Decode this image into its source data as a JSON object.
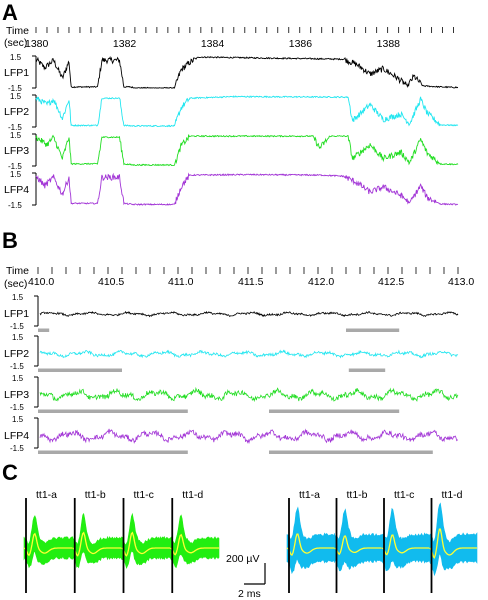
{
  "colors": {
    "LFP1": "#000000",
    "LFP2": "#22e6f0",
    "LFP3": "#22dd22",
    "LFP4": "#a235d6",
    "bar": "#a9a9a9",
    "waveA": "#22ee11",
    "waveB": "#11bbee",
    "mean": "#ffff33"
  },
  "chart_data": [
    {
      "panel": "A",
      "type": "line",
      "xlabel": "Time",
      "xunit": "(sec)",
      "xlim": [
        1380,
        1389.6
      ],
      "xticks": [
        1380,
        1382,
        1384,
        1386,
        1388
      ],
      "minor_tick_step": 0.25,
      "ylim": [
        -1.5,
        1.5
      ],
      "ytick_labels": [
        "1.5",
        "-1.5"
      ],
      "series": [
        {
          "name": "LFP1",
          "color": "#000000",
          "points": [
            [
              1380,
              1.2
            ],
            [
              1380.2,
              0.4
            ],
            [
              1380.4,
              1.1
            ],
            [
              1380.6,
              -0.6
            ],
            [
              1380.75,
              1.0
            ],
            [
              1380.8,
              -1.4
            ],
            [
              1381.4,
              -1.4
            ],
            [
              1381.5,
              1.1
            ],
            [
              1381.9,
              1.1
            ],
            [
              1382.0,
              -1.4
            ],
            [
              1382.15,
              -1.4
            ],
            [
              1382.25,
              -1.5
            ],
            [
              1383.15,
              -1.5
            ],
            [
              1383.3,
              0.2
            ],
            [
              1383.5,
              0.9
            ],
            [
              1383.7,
              1.4
            ],
            [
              1387.0,
              1.2
            ],
            [
              1387.3,
              0.7
            ],
            [
              1387.6,
              -0.2
            ],
            [
              1387.9,
              0.3
            ],
            [
              1388.2,
              -0.5
            ],
            [
              1388.45,
              -1.3
            ],
            [
              1388.6,
              -0.4
            ],
            [
              1388.8,
              -1.3
            ],
            [
              1389.2,
              -1.4
            ],
            [
              1389.6,
              -1.45
            ]
          ]
        },
        {
          "name": "LFP2",
          "color": "#22e6f0",
          "points": [
            [
              1380,
              1.2
            ],
            [
              1380.25,
              0.6
            ],
            [
              1380.4,
              1.1
            ],
            [
              1380.6,
              -0.7
            ],
            [
              1380.75,
              1.1
            ],
            [
              1380.8,
              -1.35
            ],
            [
              1381.4,
              -1.35
            ],
            [
              1381.5,
              1.2
            ],
            [
              1381.9,
              1.2
            ],
            [
              1382.0,
              -1.35
            ],
            [
              1382.2,
              -1.4
            ],
            [
              1383.15,
              -1.4
            ],
            [
              1383.3,
              0.3
            ],
            [
              1383.5,
              1.2
            ],
            [
              1384.5,
              1.35
            ],
            [
              1387.1,
              1.3
            ],
            [
              1387.2,
              -0.9
            ],
            [
              1387.6,
              0.6
            ],
            [
              1387.9,
              -0.8
            ],
            [
              1388.3,
              -0.3
            ],
            [
              1388.5,
              -1.2
            ],
            [
              1388.75,
              1.1
            ],
            [
              1388.9,
              -0.2
            ],
            [
              1389.2,
              -1.3
            ],
            [
              1389.6,
              -1.35
            ]
          ]
        },
        {
          "name": "LFP3",
          "color": "#22dd22",
          "points": [
            [
              1380,
              1.2
            ],
            [
              1380.25,
              0.5
            ],
            [
              1380.4,
              1.2
            ],
            [
              1380.6,
              -0.8
            ],
            [
              1380.75,
              1.2
            ],
            [
              1380.8,
              -1.3
            ],
            [
              1381.4,
              -1.3
            ],
            [
              1381.5,
              1.2
            ],
            [
              1381.9,
              1.2
            ],
            [
              1382.0,
              -1.3
            ],
            [
              1382.2,
              -1.4
            ],
            [
              1383.15,
              -1.4
            ],
            [
              1383.3,
              0.4
            ],
            [
              1383.5,
              1.3
            ],
            [
              1386.3,
              1.3
            ],
            [
              1386.45,
              0.2
            ],
            [
              1386.7,
              1.3
            ],
            [
              1387.1,
              1.3
            ],
            [
              1387.2,
              -0.8
            ],
            [
              1387.6,
              0.5
            ],
            [
              1387.9,
              -0.8
            ],
            [
              1388.3,
              -0.2
            ],
            [
              1388.5,
              -1.2
            ],
            [
              1388.75,
              1.0
            ],
            [
              1388.9,
              -0.3
            ],
            [
              1389.2,
              -1.3
            ],
            [
              1389.6,
              -1.35
            ]
          ]
        },
        {
          "name": "LFP4",
          "color": "#a235d6",
          "points": [
            [
              1380,
              1.2
            ],
            [
              1380.2,
              0.3
            ],
            [
              1380.4,
              1.1
            ],
            [
              1380.6,
              -0.5
            ],
            [
              1380.75,
              1.1
            ],
            [
              1380.8,
              -1.35
            ],
            [
              1381.4,
              -1.35
            ],
            [
              1381.5,
              1.1
            ],
            [
              1381.9,
              1.1
            ],
            [
              1382.0,
              -1.35
            ],
            [
              1382.2,
              -1.45
            ],
            [
              1383.15,
              -1.45
            ],
            [
              1383.3,
              0.2
            ],
            [
              1383.5,
              1.3
            ],
            [
              1384.8,
              1.35
            ],
            [
              1386.5,
              1.3
            ],
            [
              1387.0,
              1.2
            ],
            [
              1387.3,
              0.6
            ],
            [
              1387.6,
              -0.3
            ],
            [
              1387.9,
              0.2
            ],
            [
              1388.3,
              -0.6
            ],
            [
              1388.5,
              -1.3
            ],
            [
              1388.75,
              0.3
            ],
            [
              1388.9,
              -0.8
            ],
            [
              1389.2,
              -1.4
            ],
            [
              1389.6,
              -1.45
            ]
          ]
        }
      ]
    },
    {
      "panel": "B",
      "type": "line",
      "xlabel": "Time",
      "xunit": "(sec)",
      "xlim": [
        410.0,
        413.0
      ],
      "xticks": [
        "410.0",
        "410.5",
        "411.0",
        "411.5",
        "412.0",
        "412.5",
        "413.0"
      ],
      "minor_tick_step": 0.1,
      "ylim": [
        -1.5,
        1.5
      ],
      "ytick_labels": [
        "1.5",
        "-1.5"
      ],
      "series": [
        {
          "name": "LFP1",
          "color": "#000000",
          "amplitude": 0.2,
          "bars": [
            [
              410.0,
              410.08
            ],
            [
              412.2,
              412.58
            ]
          ]
        },
        {
          "name": "LFP2",
          "color": "#22e6f0",
          "amplitude": 0.3,
          "bars": [
            [
              410.0,
              410.6
            ],
            [
              412.22,
              412.48
            ]
          ]
        },
        {
          "name": "LFP3",
          "color": "#22dd22",
          "amplitude": 0.55,
          "bars": [
            [
              410.0,
              411.07
            ],
            [
              411.65,
              412.58
            ]
          ]
        },
        {
          "name": "LFP4",
          "color": "#a235d6",
          "amplitude": 0.55,
          "bars": [
            [
              410.0,
              411.07
            ],
            [
              411.65,
              412.82
            ]
          ]
        }
      ]
    },
    {
      "panel": "C",
      "type": "line",
      "groups": [
        {
          "side": "left",
          "color": "#22ee11",
          "mean_color": "#ffff33",
          "channels": [
            "tt1-a",
            "tt1-b",
            "tt1-c",
            "tt1-d"
          ],
          "peak_amplitude_uV": [
            140,
            150,
            150,
            130
          ]
        },
        {
          "side": "right",
          "color": "#11bbee",
          "mean_color": "#ffff33",
          "channels": [
            "tt1-a",
            "tt1-b",
            "tt1-c",
            "tt1-d"
          ],
          "peak_amplitude_uV": [
            140,
            120,
            130,
            190
          ]
        }
      ],
      "scale_bar": {
        "y_label": "200 µV",
        "x_label": "2 ms"
      }
    }
  ]
}
